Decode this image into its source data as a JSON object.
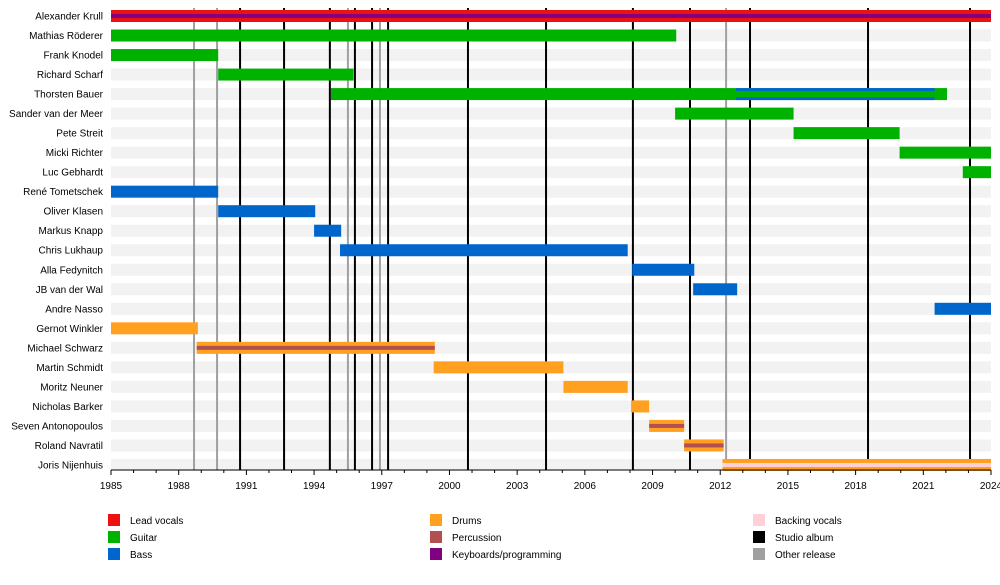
{
  "chart_data": {
    "type": "timeline",
    "title": "",
    "xlim": [
      1985,
      2024
    ],
    "x_ticks": [
      "1985",
      "1988",
      "1991",
      "1994",
      "1997",
      "2000",
      "2003",
      "2006",
      "2009",
      "2012",
      "2015",
      "2018",
      "2021",
      "2024"
    ],
    "roles": {
      "vocals": {
        "label": "Lead vocals",
        "color": "#ee1111"
      },
      "guitar": {
        "label": "Guitar",
        "color": "#00b200"
      },
      "bass": {
        "label": "Bass",
        "color": "#0066cc"
      },
      "drums": {
        "label": "Drums",
        "color": "#ffa020"
      },
      "percussion": {
        "label": "Percussion",
        "color": "#b05050"
      },
      "keyboards": {
        "label": "Keyboards/programming",
        "color": "#800080"
      },
      "backing": {
        "label": "Backing vocals",
        "color": "#ffd0d8"
      },
      "studio": {
        "label": "Studio album",
        "color": "#000000"
      },
      "other": {
        "label": "Other release",
        "color": "#a0a0a0"
      }
    },
    "legend": [
      [
        "vocals",
        "guitar",
        "bass"
      ],
      [
        "drums",
        "percussion",
        "keyboards"
      ],
      [
        "backing",
        "studio",
        "other"
      ]
    ],
    "members": [
      {
        "name": "Alexander Krull",
        "spans": [
          {
            "role": "vocals",
            "from": 1985,
            "to": 2024,
            "stripe": "keyboards"
          }
        ]
      },
      {
        "name": "Mathias Röderer",
        "spans": [
          {
            "role": "guitar",
            "from": 1985,
            "to": 2010.05
          }
        ]
      },
      {
        "name": "Frank Knodel",
        "spans": [
          {
            "role": "guitar",
            "from": 1985,
            "to": 1989.75
          }
        ]
      },
      {
        "name": "Richard Scharf",
        "spans": [
          {
            "role": "guitar",
            "from": 1989.75,
            "to": 1995.75
          }
        ]
      },
      {
        "name": "Thorsten Bauer",
        "spans": [
          {
            "role": "guitar",
            "from": 1994.75,
            "to": 2022.05
          },
          {
            "role": "bass",
            "from": 2012.7,
            "to": 2021.5,
            "overlay": true
          }
        ]
      },
      {
        "name": "Sander van der Meer",
        "spans": [
          {
            "role": "guitar",
            "from": 2010.0,
            "to": 2015.25
          }
        ]
      },
      {
        "name": "Pete Streit",
        "spans": [
          {
            "role": "guitar",
            "from": 2015.25,
            "to": 2019.95
          }
        ]
      },
      {
        "name": "Micki Richter",
        "spans": [
          {
            "role": "guitar",
            "from": 2019.95,
            "to": 2024
          }
        ]
      },
      {
        "name": "Luc Gebhardt",
        "spans": [
          {
            "role": "guitar",
            "from": 2022.75,
            "to": 2024
          }
        ]
      },
      {
        "name": "René Tometschek",
        "spans": [
          {
            "role": "bass",
            "from": 1985,
            "to": 1989.75
          }
        ]
      },
      {
        "name": "Oliver Klasen",
        "spans": [
          {
            "role": "bass",
            "from": 1989.75,
            "to": 1994.05
          }
        ]
      },
      {
        "name": "Markus Knapp",
        "spans": [
          {
            "role": "bass",
            "from": 1994.0,
            "to": 1995.2
          }
        ]
      },
      {
        "name": "Chris Lukhaup",
        "spans": [
          {
            "role": "bass",
            "from": 1995.15,
            "to": 2007.9
          }
        ]
      },
      {
        "name": "Alla Fedynitch",
        "spans": [
          {
            "role": "bass",
            "from": 2008.1,
            "to": 2010.85
          }
        ]
      },
      {
        "name": "JB van der Wal",
        "spans": [
          {
            "role": "bass",
            "from": 2010.8,
            "to": 2012.75
          }
        ]
      },
      {
        "name": "Andre Nasso",
        "spans": [
          {
            "role": "bass",
            "from": 2021.5,
            "to": 2024
          }
        ]
      },
      {
        "name": "Gernot Winkler",
        "spans": [
          {
            "role": "drums",
            "from": 1985,
            "to": 1988.85
          }
        ]
      },
      {
        "name": "Michael Schwarz",
        "spans": [
          {
            "role": "drums",
            "from": 1988.8,
            "to": 1999.35,
            "stripe": "percussion"
          }
        ]
      },
      {
        "name": "Martin Schmidt",
        "spans": [
          {
            "role": "drums",
            "from": 1999.3,
            "to": 2005.05
          }
        ]
      },
      {
        "name": "Moritz Neuner",
        "spans": [
          {
            "role": "drums",
            "from": 2005.05,
            "to": 2007.9
          }
        ]
      },
      {
        "name": "Nicholas Barker",
        "spans": [
          {
            "role": "drums",
            "from": 2008.05,
            "to": 2008.85
          }
        ]
      },
      {
        "name": "Seven Antonopoulos",
        "spans": [
          {
            "role": "drums",
            "from": 2008.85,
            "to": 2010.4,
            "stripe": "percussion"
          }
        ]
      },
      {
        "name": "Roland Navratil",
        "spans": [
          {
            "role": "drums",
            "from": 2010.4,
            "to": 2012.15,
            "stripe": "percussion"
          }
        ]
      },
      {
        "name": "Joris Nijenhuis",
        "spans": [
          {
            "role": "drums",
            "from": 2012.1,
            "to": 2024,
            "stripe": "backing"
          }
        ]
      }
    ],
    "studio_albums": [
      1990.72,
      1992.67,
      1994.7,
      1995.81,
      1996.57,
      1997.28,
      2000.82,
      2004.28,
      2008.13,
      2010.66,
      2013.32,
      2018.55,
      2023.07
    ],
    "other_releases": [
      1988.68,
      1989.7,
      1995.5,
      1996.92,
      2012.26
    ]
  }
}
